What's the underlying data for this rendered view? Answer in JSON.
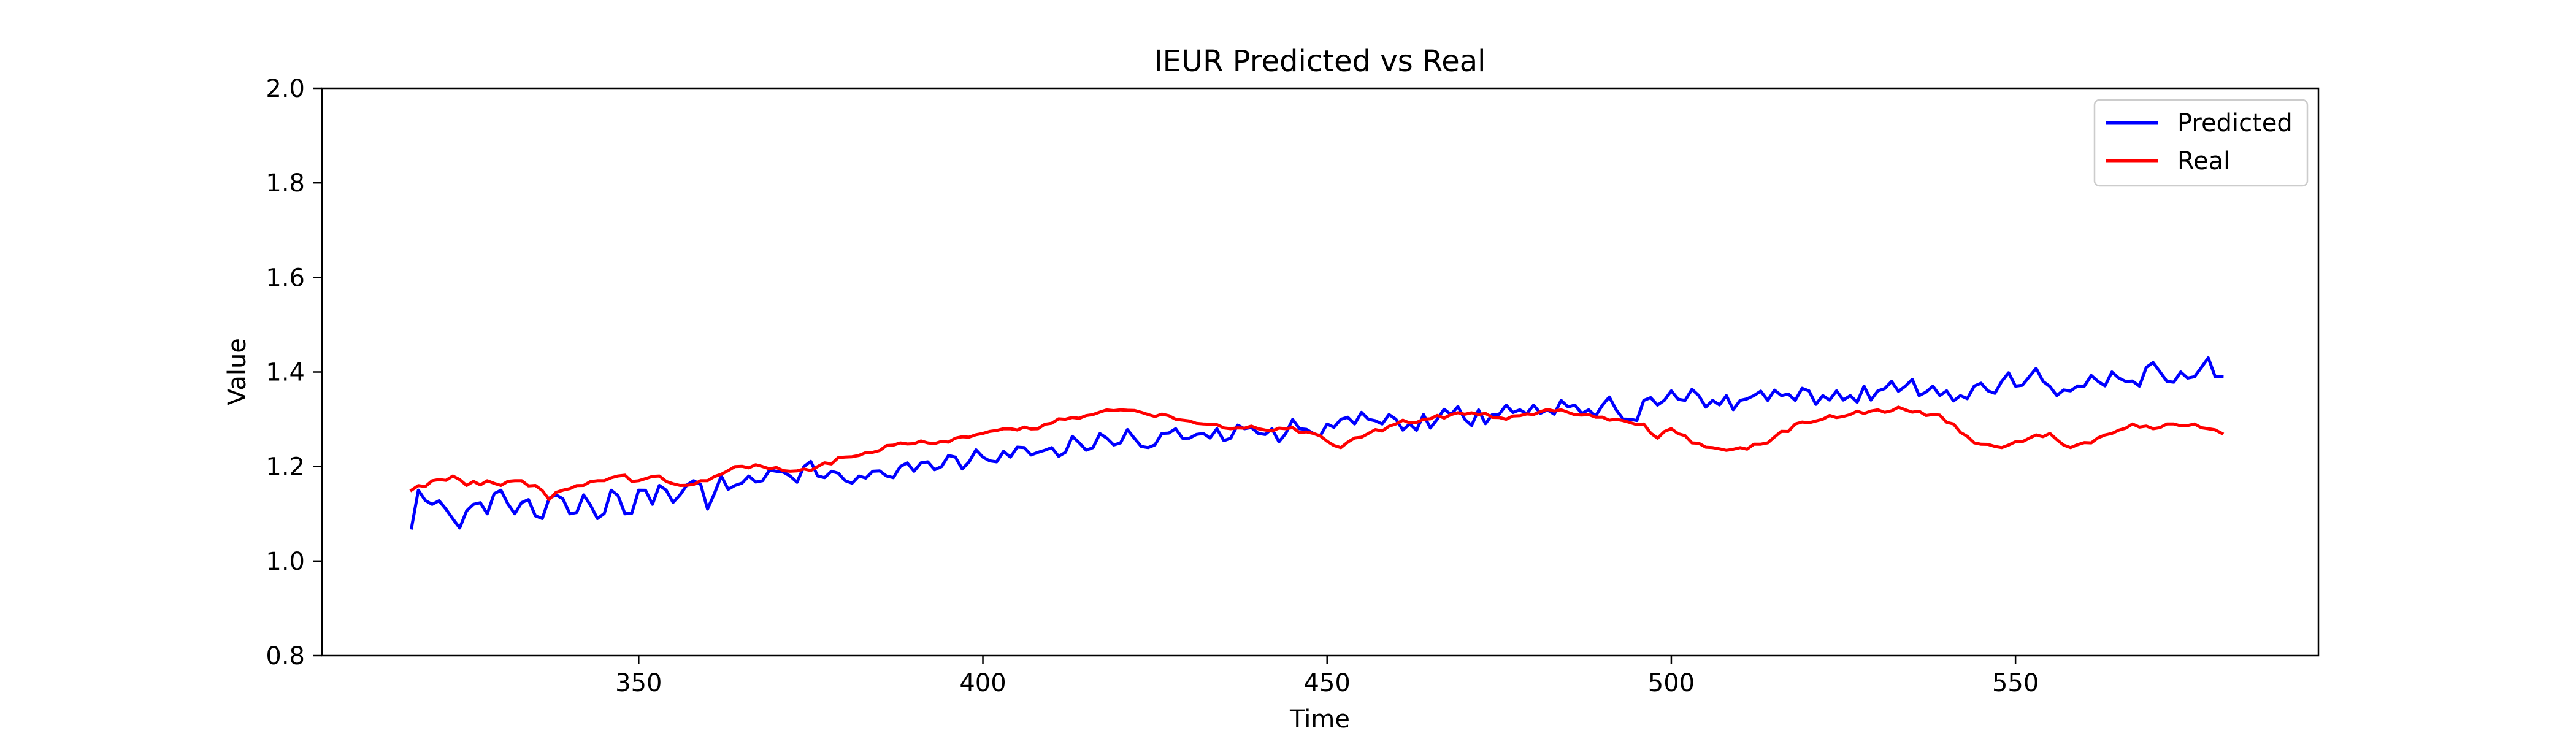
{
  "chart_data": {
    "type": "line",
    "title": "IEUR Predicted vs Real",
    "xlabel": "Time",
    "ylabel": "Value",
    "xlim": [
      304,
      594
    ],
    "ylim": [
      0.8,
      2.0
    ],
    "xticks": [
      350,
      400,
      450,
      500,
      550
    ],
    "xtick_labels": [
      "350",
      "400",
      "450",
      "500",
      "550"
    ],
    "yticks": [
      0.8,
      1.0,
      1.2,
      1.4,
      1.6,
      1.8,
      2.0
    ],
    "ytick_labels": [
      "0.8",
      "1.0",
      "1.2",
      "1.4",
      "1.6",
      "1.8",
      "2.0"
    ],
    "grid": false,
    "legend_position": "top-right",
    "x_start": 317,
    "x_end": 580,
    "series": [
      {
        "name": "Predicted",
        "color": "#0000ff",
        "keypoints": [
          [
            317,
            1.07
          ],
          [
            318,
            1.15
          ],
          [
            320,
            1.12
          ],
          [
            322,
            1.11
          ],
          [
            324,
            1.07
          ],
          [
            326,
            1.12
          ],
          [
            328,
            1.1
          ],
          [
            330,
            1.15
          ],
          [
            332,
            1.1
          ],
          [
            334,
            1.13
          ],
          [
            336,
            1.09
          ],
          [
            338,
            1.14
          ],
          [
            340,
            1.1
          ],
          [
            342,
            1.14
          ],
          [
            344,
            1.09
          ],
          [
            346,
            1.15
          ],
          [
            348,
            1.1
          ],
          [
            350,
            1.15
          ],
          [
            352,
            1.12
          ],
          [
            354,
            1.15
          ],
          [
            356,
            1.14
          ],
          [
            358,
            1.17
          ],
          [
            360,
            1.11
          ],
          [
            362,
            1.18
          ],
          [
            364,
            1.16
          ],
          [
            366,
            1.18
          ],
          [
            368,
            1.17
          ],
          [
            370,
            1.19
          ],
          [
            372,
            1.18
          ],
          [
            374,
            1.2
          ],
          [
            376,
            1.18
          ],
          [
            378,
            1.19
          ],
          [
            380,
            1.17
          ],
          [
            382,
            1.18
          ],
          [
            384,
            1.19
          ],
          [
            386,
            1.18
          ],
          [
            388,
            1.2
          ],
          [
            390,
            1.19
          ],
          [
            392,
            1.21
          ],
          [
            394,
            1.2
          ],
          [
            396,
            1.22
          ],
          [
            398,
            1.21
          ],
          [
            400,
            1.22
          ],
          [
            402,
            1.21
          ],
          [
            404,
            1.22
          ],
          [
            406,
            1.24
          ],
          [
            408,
            1.23
          ],
          [
            410,
            1.24
          ],
          [
            412,
            1.23
          ],
          [
            414,
            1.25
          ],
          [
            416,
            1.24
          ],
          [
            418,
            1.26
          ],
          [
            420,
            1.25
          ],
          [
            422,
            1.26
          ],
          [
            424,
            1.24
          ],
          [
            426,
            1.27
          ],
          [
            428,
            1.28
          ],
          [
            430,
            1.26
          ],
          [
            432,
            1.27
          ],
          [
            434,
            1.28
          ],
          [
            436,
            1.26
          ],
          [
            438,
            1.28
          ],
          [
            440,
            1.27
          ],
          [
            442,
            1.28
          ],
          [
            444,
            1.27
          ],
          [
            446,
            1.28
          ],
          [
            448,
            1.27
          ],
          [
            450,
            1.29
          ],
          [
            452,
            1.3
          ],
          [
            454,
            1.29
          ],
          [
            456,
            1.3
          ],
          [
            458,
            1.29
          ],
          [
            460,
            1.3
          ],
          [
            462,
            1.29
          ],
          [
            464,
            1.31
          ],
          [
            466,
            1.3
          ],
          [
            468,
            1.31
          ],
          [
            470,
            1.3
          ],
          [
            472,
            1.32
          ],
          [
            474,
            1.31
          ],
          [
            476,
            1.33
          ],
          [
            478,
            1.32
          ],
          [
            480,
            1.33
          ],
          [
            482,
            1.32
          ],
          [
            484,
            1.34
          ],
          [
            486,
            1.33
          ],
          [
            488,
            1.32
          ],
          [
            490,
            1.33
          ],
          [
            492,
            1.32
          ],
          [
            494,
            1.3
          ],
          [
            496,
            1.34
          ],
          [
            498,
            1.33
          ],
          [
            500,
            1.36
          ],
          [
            502,
            1.34
          ],
          [
            504,
            1.35
          ],
          [
            506,
            1.34
          ],
          [
            508,
            1.35
          ],
          [
            510,
            1.34
          ],
          [
            512,
            1.35
          ],
          [
            514,
            1.34
          ],
          [
            516,
            1.35
          ],
          [
            518,
            1.34
          ],
          [
            520,
            1.36
          ],
          [
            522,
            1.35
          ],
          [
            524,
            1.36
          ],
          [
            526,
            1.35
          ],
          [
            528,
            1.37
          ],
          [
            530,
            1.36
          ],
          [
            532,
            1.38
          ],
          [
            534,
            1.37
          ],
          [
            536,
            1.35
          ],
          [
            538,
            1.37
          ],
          [
            540,
            1.36
          ],
          [
            542,
            1.35
          ],
          [
            544,
            1.37
          ],
          [
            546,
            1.36
          ],
          [
            548,
            1.38
          ],
          [
            550,
            1.37
          ],
          [
            552,
            1.39
          ],
          [
            554,
            1.38
          ],
          [
            556,
            1.35
          ],
          [
            558,
            1.36
          ],
          [
            560,
            1.37
          ],
          [
            562,
            1.38
          ],
          [
            564,
            1.4
          ],
          [
            566,
            1.38
          ],
          [
            568,
            1.37
          ],
          [
            570,
            1.42
          ],
          [
            572,
            1.38
          ],
          [
            574,
            1.4
          ],
          [
            576,
            1.39
          ],
          [
            578,
            1.43
          ],
          [
            580,
            1.39
          ]
        ]
      },
      {
        "name": "Real",
        "color": "#ff0000",
        "keypoints": [
          [
            317,
            1.15
          ],
          [
            320,
            1.17
          ],
          [
            323,
            1.18
          ],
          [
            325,
            1.16
          ],
          [
            328,
            1.17
          ],
          [
            330,
            1.16
          ],
          [
            333,
            1.17
          ],
          [
            335,
            1.16
          ],
          [
            337,
            1.13
          ],
          [
            339,
            1.15
          ],
          [
            342,
            1.16
          ],
          [
            345,
            1.17
          ],
          [
            347,
            1.18
          ],
          [
            350,
            1.17
          ],
          [
            353,
            1.18
          ],
          [
            356,
            1.16
          ],
          [
            360,
            1.17
          ],
          [
            364,
            1.2
          ],
          [
            368,
            1.2
          ],
          [
            372,
            1.19
          ],
          [
            376,
            1.2
          ],
          [
            380,
            1.22
          ],
          [
            384,
            1.23
          ],
          [
            388,
            1.25
          ],
          [
            392,
            1.25
          ],
          [
            396,
            1.26
          ],
          [
            400,
            1.27
          ],
          [
            404,
            1.28
          ],
          [
            408,
            1.28
          ],
          [
            412,
            1.3
          ],
          [
            416,
            1.31
          ],
          [
            420,
            1.32
          ],
          [
            424,
            1.31
          ],
          [
            428,
            1.3
          ],
          [
            432,
            1.29
          ],
          [
            436,
            1.28
          ],
          [
            440,
            1.28
          ],
          [
            444,
            1.28
          ],
          [
            448,
            1.27
          ],
          [
            452,
            1.24
          ],
          [
            456,
            1.27
          ],
          [
            460,
            1.29
          ],
          [
            464,
            1.3
          ],
          [
            468,
            1.31
          ],
          [
            472,
            1.31
          ],
          [
            476,
            1.3
          ],
          [
            480,
            1.31
          ],
          [
            484,
            1.32
          ],
          [
            488,
            1.31
          ],
          [
            492,
            1.3
          ],
          [
            496,
            1.29
          ],
          [
            498,
            1.26
          ],
          [
            500,
            1.28
          ],
          [
            503,
            1.25
          ],
          [
            506,
            1.24
          ],
          [
            510,
            1.24
          ],
          [
            514,
            1.25
          ],
          [
            518,
            1.29
          ],
          [
            522,
            1.3
          ],
          [
            526,
            1.31
          ],
          [
            530,
            1.32
          ],
          [
            534,
            1.32
          ],
          [
            538,
            1.31
          ],
          [
            541,
            1.29
          ],
          [
            544,
            1.25
          ],
          [
            548,
            1.24
          ],
          [
            552,
            1.26
          ],
          [
            555,
            1.27
          ],
          [
            558,
            1.24
          ],
          [
            561,
            1.25
          ],
          [
            564,
            1.27
          ],
          [
            567,
            1.29
          ],
          [
            570,
            1.28
          ],
          [
            573,
            1.29
          ],
          [
            576,
            1.29
          ],
          [
            578,
            1.28
          ],
          [
            580,
            1.27
          ]
        ]
      }
    ]
  }
}
